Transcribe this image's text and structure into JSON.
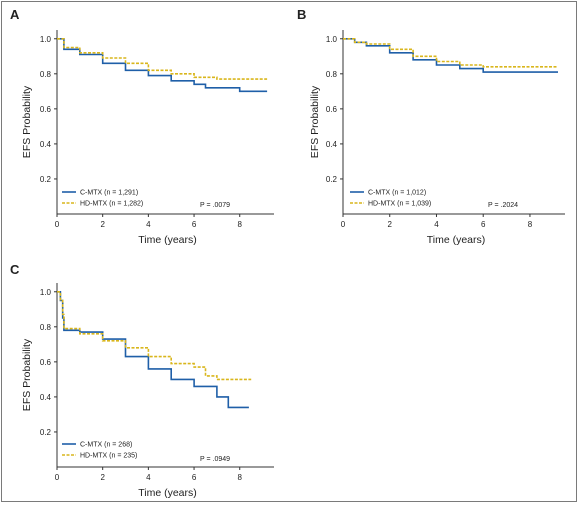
{
  "colors": {
    "c_mtx": "#1f5fa8",
    "hd_mtx": "#d9b61c"
  },
  "chart_data": [
    {
      "panel": "A",
      "type": "line",
      "xlabel": "Time (years)",
      "ylabel": "EFS Probability",
      "xticks": [
        "0",
        "2",
        "4",
        "6",
        "8"
      ],
      "yticks": [
        "0.2",
        "0.4",
        "0.6",
        "0.8",
        "1.0"
      ],
      "xlim": [
        0,
        9.5
      ],
      "ylim": [
        0,
        1.05
      ],
      "p_value": "P = .0079",
      "legend": "bottom-left",
      "series": [
        {
          "name": "C-MTX (n = 1,291)",
          "style": "solid",
          "x": [
            0,
            0.3,
            1,
            2,
            3,
            4,
            5,
            6,
            6.5,
            7,
            8,
            9.2
          ],
          "y": [
            1.0,
            0.94,
            0.91,
            0.86,
            0.82,
            0.79,
            0.76,
            0.74,
            0.72,
            0.72,
            0.7,
            0.7
          ]
        },
        {
          "name": "HD-MTX (n = 1,282)",
          "style": "dashed",
          "x": [
            0,
            0.3,
            1,
            2,
            3,
            4,
            5,
            6,
            7,
            8,
            9.2
          ],
          "y": [
            1.0,
            0.95,
            0.92,
            0.89,
            0.86,
            0.82,
            0.8,
            0.78,
            0.77,
            0.77,
            0.77
          ]
        }
      ]
    },
    {
      "panel": "B",
      "type": "line",
      "xlabel": "Time (years)",
      "ylabel": "EFS Probability",
      "xticks": [
        "0",
        "2",
        "4",
        "6",
        "8"
      ],
      "yticks": [
        "0.2",
        "0.4",
        "0.6",
        "0.8",
        "1.0"
      ],
      "xlim": [
        0,
        9.5
      ],
      "ylim": [
        0,
        1.05
      ],
      "p_value": "P = .2024",
      "legend": "bottom-left",
      "series": [
        {
          "name": "C-MTX (n = 1,012)",
          "style": "solid",
          "x": [
            0,
            0.5,
            1,
            2,
            3,
            4,
            5,
            6,
            7,
            8,
            9.2
          ],
          "y": [
            1.0,
            0.98,
            0.96,
            0.92,
            0.88,
            0.85,
            0.83,
            0.81,
            0.81,
            0.81,
            0.81
          ]
        },
        {
          "name": "HD-MTX (n = 1,039)",
          "style": "dashed",
          "x": [
            0,
            0.5,
            1,
            2,
            3,
            4,
            5,
            6,
            7,
            8,
            9.2
          ],
          "y": [
            1.0,
            0.98,
            0.97,
            0.94,
            0.9,
            0.87,
            0.85,
            0.84,
            0.84,
            0.84,
            0.84
          ]
        }
      ]
    },
    {
      "panel": "C",
      "type": "line",
      "xlabel": "Time (years)",
      "ylabel": "EFS Probability",
      "xticks": [
        "0",
        "2",
        "4",
        "6",
        "8"
      ],
      "yticks": [
        "0.2",
        "0.4",
        "0.6",
        "0.8",
        "1.0"
      ],
      "xlim": [
        0,
        9.5
      ],
      "ylim": [
        0,
        1.05
      ],
      "p_value": "P = .0949",
      "legend": "bottom-left",
      "series": [
        {
          "name": "C-MTX (n = 268)",
          "style": "solid",
          "x": [
            0,
            0.15,
            0.25,
            0.3,
            1,
            2,
            3,
            4,
            5,
            6,
            6.5,
            7,
            7.5,
            8,
            8.4
          ],
          "y": [
            1.0,
            0.95,
            0.85,
            0.78,
            0.77,
            0.73,
            0.63,
            0.56,
            0.5,
            0.46,
            0.46,
            0.4,
            0.34,
            0.34,
            0.34
          ]
        },
        {
          "name": "HD-MTX (n = 235)",
          "style": "dashed",
          "x": [
            0,
            0.15,
            0.25,
            0.3,
            1,
            2,
            3,
            4,
            5,
            6,
            6.5,
            7,
            8,
            8.5
          ],
          "y": [
            1.0,
            0.95,
            0.87,
            0.79,
            0.76,
            0.72,
            0.68,
            0.63,
            0.59,
            0.57,
            0.52,
            0.5,
            0.5,
            0.5
          ]
        }
      ]
    }
  ]
}
